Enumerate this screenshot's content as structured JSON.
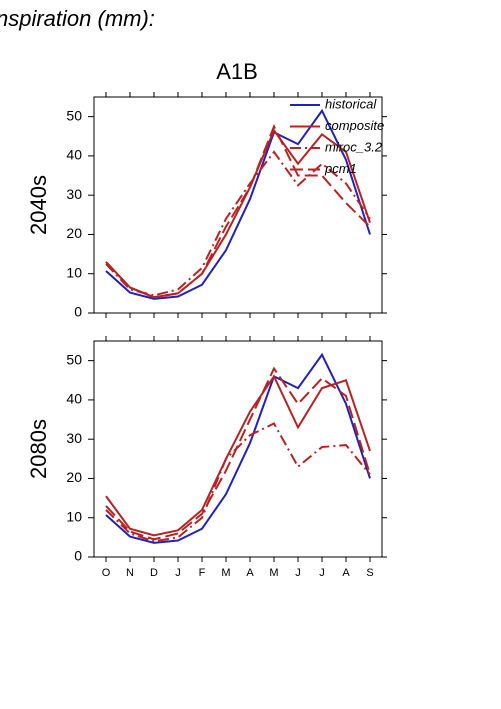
{
  "page": {
    "title": "nspiration (mm):",
    "subtitle": "A1B"
  },
  "chart_data": [
    {
      "type": "line",
      "ylabel": "2040s",
      "ylim": [
        0,
        55
      ],
      "yticks": [
        0,
        10,
        20,
        30,
        40,
        50
      ],
      "legend": "upper right",
      "series": [
        {
          "name": "historical",
          "color": "#2222b8",
          "linestyle": "solid",
          "values": [
            10.7,
            5.2,
            3.6,
            4.2,
            7.2,
            16,
            29,
            46,
            43,
            51.5,
            39,
            20
          ]
        },
        {
          "name": "composite",
          "color": "#b52424",
          "linestyle": "solid",
          "values": [
            13,
            6.5,
            4,
            5,
            10,
            20,
            32,
            46.5,
            38,
            45.5,
            41,
            23
          ]
        },
        {
          "name": "miroc_3.2",
          "color": "#b52424",
          "linestyle": "dashdot",
          "values": [
            12.5,
            6,
            4.5,
            6,
            11.5,
            24,
            33,
            41,
            32.5,
            38,
            33,
            24
          ]
        },
        {
          "name": "pcm1",
          "color": "#b52424",
          "linestyle": "dashed",
          "values": [
            13,
            6.5,
            4,
            5,
            10,
            22,
            32,
            47.5,
            35,
            35,
            28,
            22
          ]
        }
      ]
    },
    {
      "type": "line",
      "ylabel": "2080s",
      "ylim": [
        0,
        55
      ],
      "yticks": [
        0,
        10,
        20,
        30,
        40,
        50
      ],
      "categories": [
        "O",
        "N",
        "D",
        "J",
        "F",
        "M",
        "A",
        "M",
        "J",
        "J",
        "A",
        "S"
      ],
      "series": [
        {
          "color": "#2222b8",
          "linestyle": "solid",
          "values": [
            10.7,
            5.2,
            3.6,
            4.2,
            7.2,
            16,
            29,
            46,
            43,
            51.5,
            39,
            20
          ]
        },
        {
          "color": "#b52424",
          "linestyle": "solid",
          "values": [
            15.5,
            7.2,
            5.5,
            6.8,
            12,
            25,
            37,
            46,
            33,
            43,
            45,
            27
          ]
        },
        {
          "color": "#b52424",
          "linestyle": "dashdot",
          "values": [
            12,
            6,
            4,
            5,
            10,
            25,
            31,
            34,
            23,
            28,
            28.5,
            21
          ]
        },
        {
          "color": "#b52424",
          "linestyle": "dashed",
          "values": [
            13,
            6.5,
            4.5,
            6,
            11,
            22,
            35,
            48,
            39,
            45.5,
            41,
            21
          ]
        }
      ]
    }
  ]
}
